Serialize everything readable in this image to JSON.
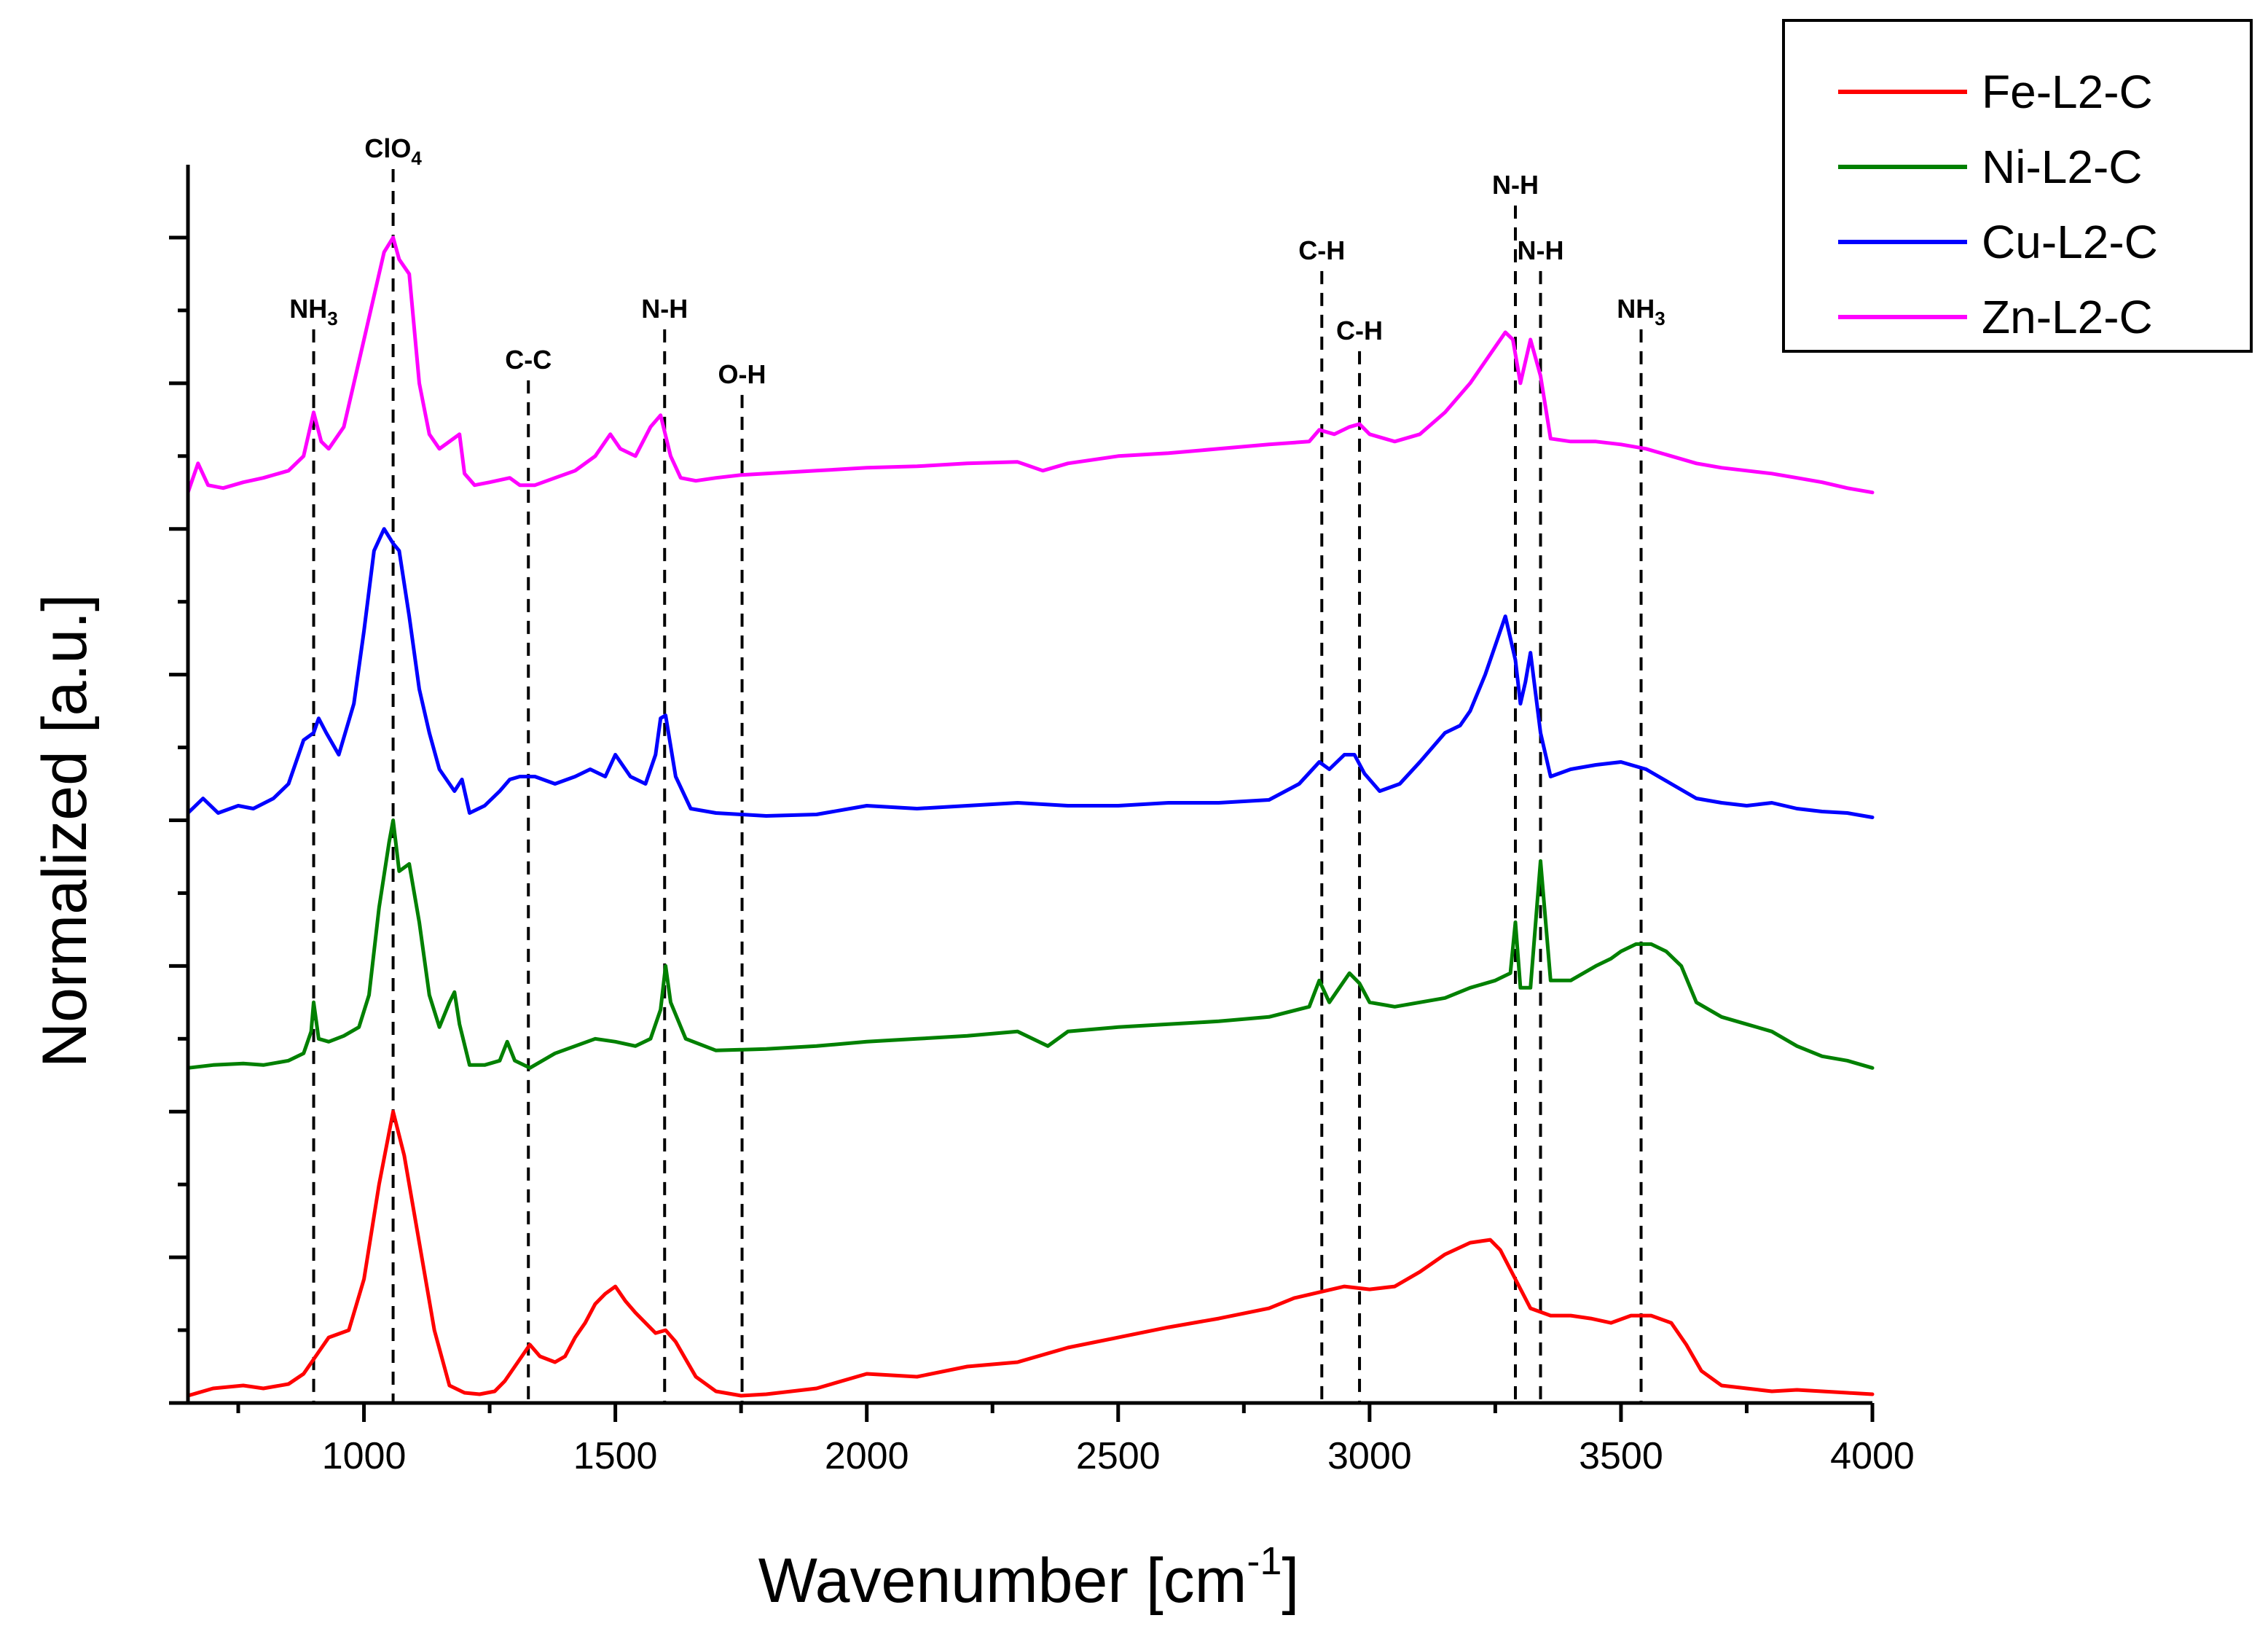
{
  "chart_data": {
    "type": "line",
    "title": "",
    "xlabel": "Wavenumber [cm",
    "xlabel_sup": "-1",
    "xlabel_close": "]",
    "ylabel": "Normalized [a.u.]",
    "xlim": [
      650,
      4000
    ],
    "ylim": [
      0,
      8.5
    ],
    "grid": false,
    "legend_position": "top-right",
    "x_ticks": [
      1000,
      1500,
      2000,
      2500,
      3000,
      3500,
      4000
    ],
    "x_tick_labels": [
      "1000",
      "1500",
      "2000",
      "2500",
      "3000",
      "3500",
      "4000"
    ],
    "annotations": [
      {
        "label": "NH",
        "sub": "3",
        "x": 900,
        "label_y": 7.45
      },
      {
        "label": "ClO",
        "sub": "4",
        "x": 1058,
        "label_y": 8.55
      },
      {
        "label": "C-C",
        "sub": "",
        "x": 1327,
        "label_y": 7.1
      },
      {
        "label": "N-H",
        "sub": "",
        "x": 1598,
        "label_y": 7.45
      },
      {
        "label": "O-H",
        "sub": "",
        "x": 1752,
        "label_y": 7.0
      },
      {
        "label": "C-H",
        "sub": "",
        "x": 2905,
        "label_y": 7.85
      },
      {
        "label": "C-H",
        "sub": "",
        "x": 2980,
        "label_y": 7.3
      },
      {
        "label": "N-H",
        "sub": "",
        "x": 3290,
        "label_y": 8.3
      },
      {
        "label": "N-H",
        "sub": "",
        "x": 3340,
        "label_y": 7.85
      },
      {
        "label": "NH",
        "sub": "3",
        "x": 3540,
        "label_y": 7.45
      }
    ],
    "series": [
      {
        "name": "Fe-L2-C",
        "color": "#ff0000",
        "x": [
          650,
          700,
          760,
          800,
          850,
          880,
          900,
          930,
          970,
          1000,
          1030,
          1058,
          1080,
          1110,
          1140,
          1170,
          1200,
          1230,
          1260,
          1280,
          1310,
          1330,
          1350,
          1380,
          1400,
          1420,
          1440,
          1460,
          1480,
          1500,
          1520,
          1540,
          1560,
          1580,
          1600,
          1620,
          1640,
          1660,
          1700,
          1750,
          1800,
          1900,
          2000,
          2100,
          2200,
          2300,
          2400,
          2500,
          2600,
          2700,
          2800,
          2850,
          2900,
          2950,
          3000,
          3050,
          3100,
          3150,
          3200,
          3240,
          3260,
          3290,
          3320,
          3360,
          3400,
          3440,
          3480,
          3520,
          3560,
          3600,
          3630,
          3660,
          3700,
          3750,
          3800,
          3850,
          3900,
          3950,
          4000
        ],
        "values": [
          0.05,
          0.1,
          0.12,
          0.1,
          0.13,
          0.2,
          0.3,
          0.45,
          0.5,
          0.85,
          1.5,
          2.0,
          1.7,
          1.1,
          0.5,
          0.12,
          0.07,
          0.06,
          0.08,
          0.15,
          0.3,
          0.4,
          0.32,
          0.28,
          0.32,
          0.45,
          0.55,
          0.68,
          0.75,
          0.8,
          0.7,
          0.62,
          0.55,
          0.48,
          0.5,
          0.42,
          0.3,
          0.18,
          0.08,
          0.05,
          0.06,
          0.1,
          0.2,
          0.18,
          0.25,
          0.28,
          0.38,
          0.45,
          0.52,
          0.58,
          0.65,
          0.72,
          0.76,
          0.8,
          0.78,
          0.8,
          0.9,
          1.02,
          1.1,
          1.12,
          1.05,
          0.85,
          0.65,
          0.6,
          0.6,
          0.58,
          0.55,
          0.6,
          0.6,
          0.55,
          0.4,
          0.22,
          0.12,
          0.1,
          0.08,
          0.09,
          0.08,
          0.07,
          0.06
        ]
      },
      {
        "name": "Ni-L2-C",
        "color": "#008000",
        "x": [
          650,
          700,
          760,
          800,
          850,
          880,
          895,
          900,
          910,
          930,
          960,
          990,
          1010,
          1030,
          1050,
          1058,
          1070,
          1090,
          1110,
          1130,
          1150,
          1170,
          1180,
          1190,
          1210,
          1240,
          1270,
          1285,
          1300,
          1330,
          1380,
          1420,
          1460,
          1500,
          1540,
          1570,
          1590,
          1600,
          1610,
          1640,
          1700,
          1800,
          1900,
          2000,
          2100,
          2200,
          2300,
          2360,
          2400,
          2500,
          2600,
          2700,
          2800,
          2880,
          2900,
          2920,
          2940,
          2960,
          2980,
          3000,
          3050,
          3100,
          3150,
          3200,
          3250,
          3280,
          3290,
          3300,
          3320,
          3340,
          3360,
          3400,
          3450,
          3480,
          3500,
          3530,
          3560,
          3590,
          3620,
          3650,
          3700,
          3750,
          3800,
          3850,
          3900,
          3950,
          4000
        ],
        "values": [
          2.3,
          2.32,
          2.33,
          2.32,
          2.35,
          2.4,
          2.55,
          2.75,
          2.5,
          2.48,
          2.52,
          2.58,
          2.8,
          3.4,
          3.85,
          4.0,
          3.65,
          3.7,
          3.3,
          2.8,
          2.58,
          2.75,
          2.82,
          2.6,
          2.32,
          2.32,
          2.35,
          2.48,
          2.35,
          2.3,
          2.4,
          2.45,
          2.5,
          2.48,
          2.45,
          2.5,
          2.7,
          3.0,
          2.75,
          2.5,
          2.42,
          2.43,
          2.45,
          2.48,
          2.5,
          2.52,
          2.55,
          2.45,
          2.55,
          2.58,
          2.6,
          2.62,
          2.65,
          2.72,
          2.9,
          2.75,
          2.85,
          2.95,
          2.88,
          2.75,
          2.72,
          2.75,
          2.78,
          2.85,
          2.9,
          2.95,
          3.3,
          2.85,
          2.85,
          3.72,
          2.9,
          2.9,
          3.0,
          3.05,
          3.1,
          3.15,
          3.15,
          3.1,
          3.0,
          2.75,
          2.65,
          2.6,
          2.55,
          2.45,
          2.38,
          2.35,
          2.3
        ]
      },
      {
        "name": "Cu-L2-C",
        "color": "#0000ff",
        "x": [
          650,
          680,
          710,
          750,
          780,
          820,
          850,
          880,
          900,
          910,
          925,
          950,
          980,
          1000,
          1020,
          1040,
          1058,
          1070,
          1090,
          1110,
          1130,
          1150,
          1180,
          1195,
          1210,
          1240,
          1270,
          1290,
          1310,
          1340,
          1380,
          1420,
          1450,
          1480,
          1500,
          1530,
          1560,
          1580,
          1590,
          1600,
          1620,
          1650,
          1700,
          1800,
          1900,
          2000,
          2100,
          2200,
          2300,
          2400,
          2500,
          2600,
          2700,
          2800,
          2860,
          2900,
          2920,
          2950,
          2970,
          2990,
          3020,
          3060,
          3100,
          3150,
          3180,
          3200,
          3230,
          3270,
          3290,
          3300,
          3310,
          3320,
          3340,
          3360,
          3400,
          3450,
          3500,
          3550,
          3600,
          3650,
          3700,
          3750,
          3800,
          3850,
          3900,
          3950,
          4000
        ],
        "values": [
          4.05,
          4.15,
          4.05,
          4.1,
          4.08,
          4.15,
          4.25,
          4.55,
          4.6,
          4.7,
          4.6,
          4.45,
          4.8,
          5.3,
          5.85,
          6.0,
          5.9,
          5.85,
          5.4,
          4.9,
          4.6,
          4.35,
          4.2,
          4.28,
          4.05,
          4.1,
          4.2,
          4.28,
          4.3,
          4.3,
          4.25,
          4.3,
          4.35,
          4.3,
          4.45,
          4.3,
          4.25,
          4.45,
          4.7,
          4.72,
          4.3,
          4.08,
          4.05,
          4.03,
          4.04,
          4.1,
          4.08,
          4.1,
          4.12,
          4.1,
          4.1,
          4.12,
          4.12,
          4.14,
          4.25,
          4.4,
          4.35,
          4.45,
          4.45,
          4.32,
          4.2,
          4.25,
          4.4,
          4.6,
          4.65,
          4.75,
          5.0,
          5.4,
          5.1,
          4.8,
          4.95,
          5.15,
          4.6,
          4.3,
          4.35,
          4.38,
          4.4,
          4.35,
          4.25,
          4.15,
          4.12,
          4.1,
          4.12,
          4.08,
          4.06,
          4.05,
          4.02
        ]
      },
      {
        "name": "Zn-L2-C",
        "color": "#ff00ff",
        "x": [
          650,
          670,
          690,
          720,
          760,
          800,
          850,
          880,
          900,
          915,
          930,
          960,
          1000,
          1020,
          1040,
          1058,
          1070,
          1090,
          1110,
          1130,
          1150,
          1170,
          1190,
          1200,
          1220,
          1250,
          1290,
          1310,
          1340,
          1380,
          1420,
          1460,
          1490,
          1510,
          1540,
          1570,
          1590,
          1610,
          1630,
          1660,
          1700,
          1750,
          1800,
          1900,
          2000,
          2100,
          2200,
          2300,
          2350,
          2400,
          2500,
          2600,
          2700,
          2800,
          2880,
          2900,
          2930,
          2960,
          2980,
          3000,
          3050,
          3100,
          3150,
          3200,
          3240,
          3270,
          3285,
          3300,
          3320,
          3340,
          3360,
          3400,
          3450,
          3500,
          3550,
          3600,
          3650,
          3700,
          3750,
          3800,
          3850,
          3900,
          3950,
          4000
        ],
        "values": [
          6.25,
          6.45,
          6.3,
          6.28,
          6.32,
          6.35,
          6.4,
          6.5,
          6.8,
          6.6,
          6.55,
          6.7,
          7.3,
          7.6,
          7.9,
          8.0,
          7.85,
          7.75,
          7.0,
          6.65,
          6.55,
          6.6,
          6.65,
          6.38,
          6.3,
          6.32,
          6.35,
          6.3,
          6.3,
          6.35,
          6.4,
          6.5,
          6.65,
          6.55,
          6.5,
          6.7,
          6.78,
          6.5,
          6.35,
          6.33,
          6.35,
          6.37,
          6.38,
          6.4,
          6.42,
          6.43,
          6.45,
          6.46,
          6.4,
          6.45,
          6.5,
          6.52,
          6.55,
          6.58,
          6.6,
          6.68,
          6.65,
          6.7,
          6.72,
          6.65,
          6.6,
          6.65,
          6.8,
          7.0,
          7.2,
          7.35,
          7.3,
          7.0,
          7.3,
          7.05,
          6.62,
          6.6,
          6.6,
          6.58,
          6.55,
          6.5,
          6.45,
          6.42,
          6.4,
          6.38,
          6.35,
          6.32,
          6.28,
          6.25
        ]
      }
    ]
  }
}
